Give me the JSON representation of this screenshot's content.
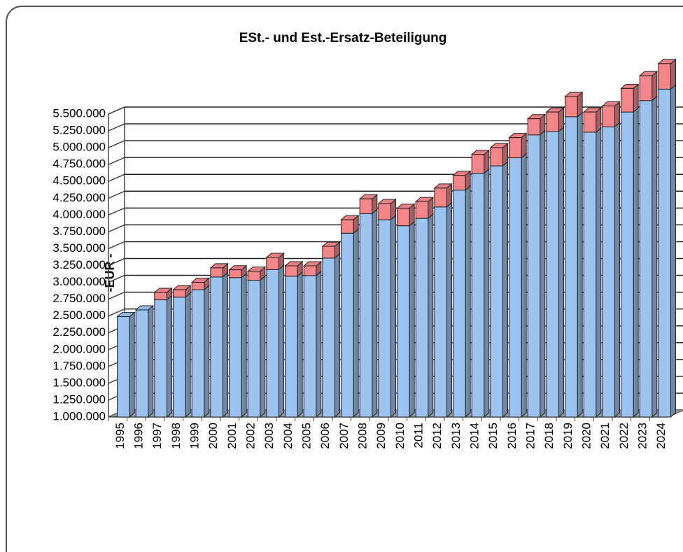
{
  "chart_data": {
    "type": "bar3d_stacked",
    "title": "ESt.- und Est.-Ersatz-Beteiligung",
    "y_label": "-EUR -",
    "categories": [
      "1995",
      "1996",
      "1997",
      "1998",
      "1999",
      "2000",
      "2001",
      "2002",
      "2003",
      "2004",
      "2005",
      "2006",
      "2007",
      "2008",
      "2009",
      "2010",
      "2011",
      "2012",
      "2013",
      "2014",
      "2015",
      "2016",
      "2017",
      "2018",
      "2019",
      "2020",
      "2021",
      "2022",
      "2023",
      "2024"
    ],
    "series": [
      {
        "color": "#9dc3f0",
        "values": [
          1490000,
          1590000,
          1740000,
          1780000,
          1890000,
          2080000,
          2070000,
          2030000,
          2190000,
          2090000,
          2100000,
          2360000,
          2730000,
          3020000,
          2930000,
          2840000,
          2950000,
          3120000,
          3370000,
          3620000,
          3730000,
          3850000,
          4190000,
          4240000,
          4460000,
          4230000,
          4310000,
          4530000,
          4700000,
          4870000
        ]
      },
      {
        "color": "#f4868a",
        "values": [
          0,
          0,
          110000,
          110000,
          110000,
          135000,
          115000,
          135000,
          180000,
          155000,
          145000,
          175000,
          200000,
          220000,
          240000,
          260000,
          250000,
          280000,
          220000,
          280000,
          270000,
          300000,
          240000,
          290000,
          300000,
          300000,
          310000,
          350000,
          370000,
          380000
        ]
      }
    ],
    "ylim": [
      1000000,
      5500000
    ],
    "yticks": [
      {
        "value": 1000000,
        "label": "1.000.000"
      },
      {
        "value": 1250000,
        "label": "1.250.000"
      },
      {
        "value": 1500000,
        "label": "1.500.000"
      },
      {
        "value": 1750000,
        "label": "1.750.000"
      },
      {
        "value": 2000000,
        "label": "2.000.000"
      },
      {
        "value": 2250000,
        "label": "2.250.000"
      },
      {
        "value": 2500000,
        "label": "2.500.000"
      },
      {
        "value": 2750000,
        "label": "2.750.000"
      },
      {
        "value": 3000000,
        "label": "3.000.000"
      },
      {
        "value": 3250000,
        "label": "3.250.000"
      },
      {
        "value": 3500000,
        "label": "3.500.000"
      },
      {
        "value": 3750000,
        "label": "3.750.000"
      },
      {
        "value": 4000000,
        "label": "4.000.000"
      },
      {
        "value": 4250000,
        "label": "4.250.000"
      },
      {
        "value": 4500000,
        "label": "4.500.000"
      },
      {
        "value": 4750000,
        "label": "4.750.000"
      },
      {
        "value": 5000000,
        "label": "5.000.000"
      },
      {
        "value": 5250000,
        "label": "5.250.000"
      },
      {
        "value": 5500000,
        "label": "5.500.000"
      }
    ],
    "grid": true
  }
}
